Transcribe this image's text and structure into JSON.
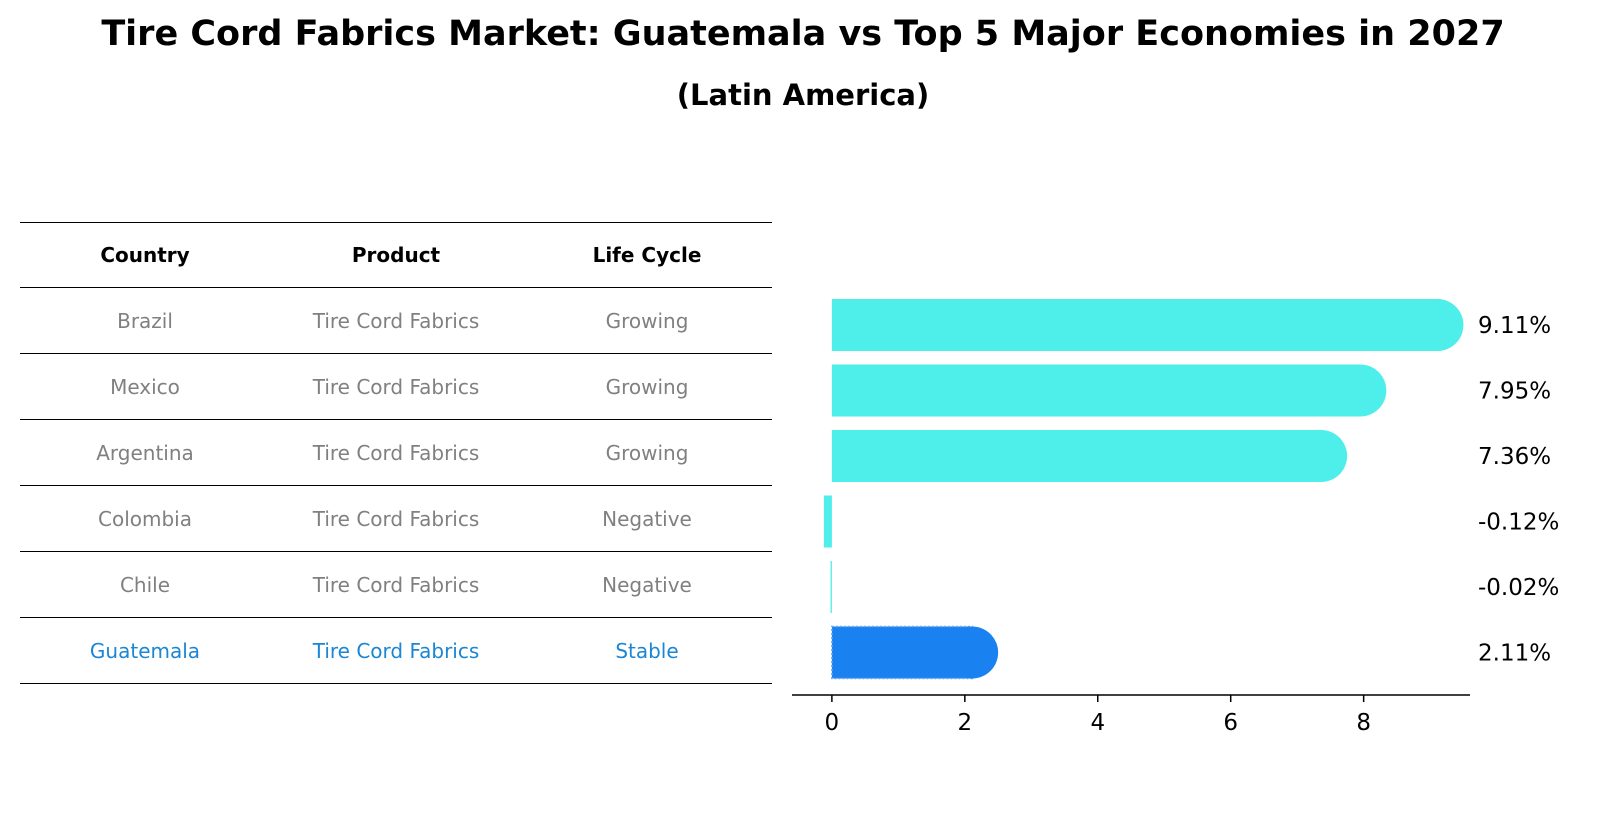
{
  "title": "Tire Cord Fabrics Market: Guatemala vs Top 5 Major Economies in 2027",
  "subtitle": "(Latin America)",
  "table": {
    "headers": [
      "Country",
      "Product",
      "Life Cycle"
    ],
    "rows": [
      [
        "Brazil",
        "Tire Cord Fabrics",
        "Growing"
      ],
      [
        "Mexico",
        "Tire Cord Fabrics",
        "Growing"
      ],
      [
        "Argentina",
        "Tire Cord Fabrics",
        "Growing"
      ],
      [
        "Colombia",
        "Tire Cord Fabrics",
        "Negative"
      ],
      [
        "Chile",
        "Tire Cord Fabrics",
        "Negative"
      ],
      [
        "Guatemala",
        "Tire Cord Fabrics",
        "Stable"
      ]
    ],
    "highlight_row": 5
  },
  "colors": {
    "bar": "#4eeeea",
    "highlight_bar": "#1a82f0",
    "highlight_text": "#1a86d4",
    "muted_text": "#808080"
  },
  "chart_data": {
    "type": "bar",
    "orientation": "horizontal",
    "categories": [
      "Brazil",
      "Mexico",
      "Argentina",
      "Colombia",
      "Chile",
      "Guatemala"
    ],
    "values": [
      9.11,
      7.95,
      7.36,
      -0.12,
      -0.02,
      2.11
    ],
    "value_labels": [
      "9.11%",
      "7.95%",
      "7.36%",
      "-0.12%",
      "-0.02%",
      "2.11%"
    ],
    "highlight_index": 5,
    "xlim": [
      -0.6,
      9.6
    ],
    "xticks": [
      0,
      2,
      4,
      6,
      8
    ],
    "xlabel": "",
    "ylabel": "",
    "grid": false
  }
}
